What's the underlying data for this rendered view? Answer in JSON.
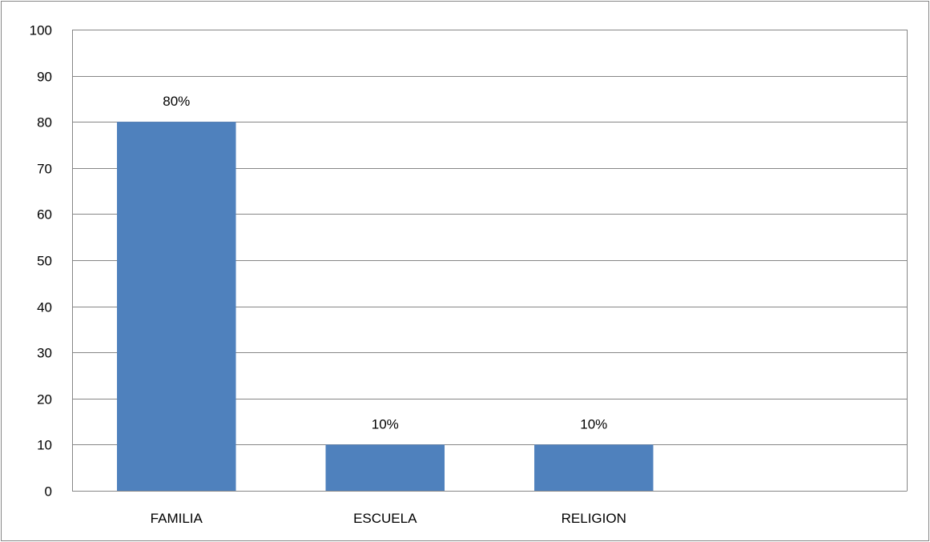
{
  "chart_data": {
    "type": "bar",
    "categories": [
      "FAMILIA",
      "ESCUELA",
      "RELIGION"
    ],
    "values": [
      80,
      10,
      10
    ],
    "data_labels": [
      "80%",
      "10%",
      "10%"
    ],
    "title": "",
    "xlabel": "",
    "ylabel": "",
    "ylim": [
      0,
      100
    ],
    "yticks": [
      "0",
      "10",
      "20",
      "30",
      "40",
      "50",
      "60",
      "70",
      "80",
      "90",
      "100"
    ],
    "ytick_values": [
      0,
      10,
      20,
      30,
      40,
      50,
      60,
      70,
      80,
      90,
      100
    ],
    "category_slots": 4,
    "grid": "horizontal",
    "legend": "none",
    "colors": {
      "bar": "#4f81bd",
      "gridline": "#868686",
      "frame": "#868686"
    }
  }
}
